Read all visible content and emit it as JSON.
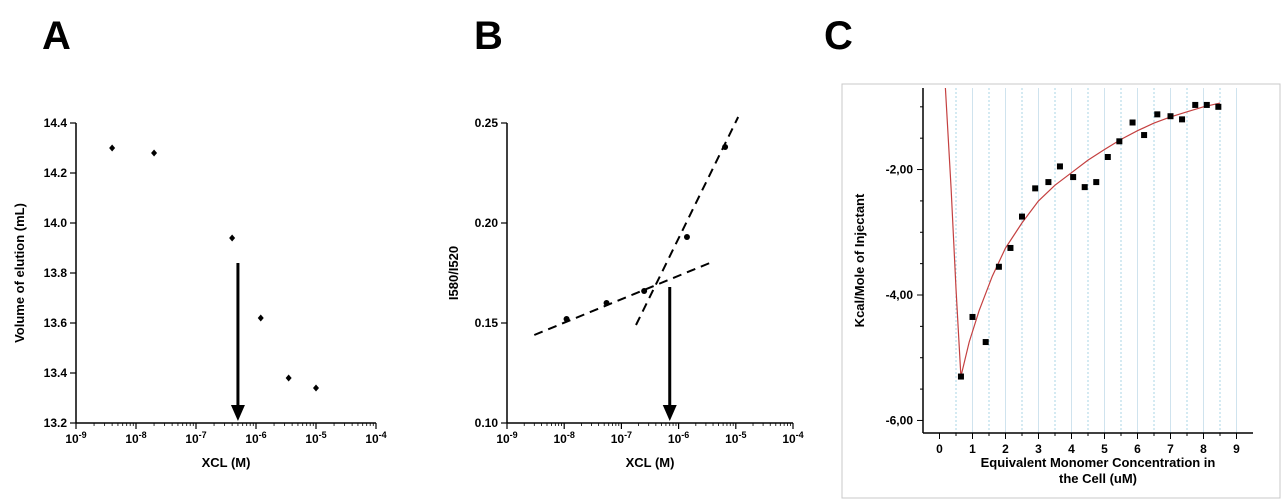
{
  "panels": {
    "a": "A",
    "b": "B",
    "c": "C"
  },
  "chart_data": [
    {
      "type": "scatter",
      "xscale": "log",
      "xlabel": "XCL (M)",
      "ylabel": "Volume of elution (mL)",
      "xlim": [
        1e-09,
        0.0001
      ],
      "ylim": [
        13.2,
        14.4
      ],
      "x_ticks": [
        -9,
        -8,
        -7,
        -6,
        -5,
        -4
      ],
      "y_ticks": [
        "13.2",
        "13.4",
        "13.6",
        "13.8",
        "14.0",
        "14.2",
        "14.4"
      ],
      "points": [
        {
          "x": 4e-09,
          "y": 14.3
        },
        {
          "x": 2e-08,
          "y": 14.28
        },
        {
          "x": 4e-07,
          "y": 13.94
        },
        {
          "x": 1.2e-06,
          "y": 13.62
        },
        {
          "x": 3.5e-06,
          "y": 13.38
        },
        {
          "x": 1e-05,
          "y": 13.34
        }
      ],
      "arrow": {
        "x": 5e-07,
        "y_from": 13.84,
        "y_to": 13.2
      }
    },
    {
      "type": "scatter",
      "xscale": "log",
      "xlabel": "XCL (M)",
      "ylabel": "I580/I520",
      "xlim": [
        1e-09,
        0.0001
      ],
      "ylim": [
        0.1,
        0.25
      ],
      "x_ticks": [
        -9,
        -8,
        -7,
        -6,
        -5,
        -4
      ],
      "y_ticks": [
        "0.10",
        "0.15",
        "0.20",
        "0.25"
      ],
      "points": [
        {
          "x": 1.1e-08,
          "y": 0.152
        },
        {
          "x": 5.5e-08,
          "y": 0.16
        },
        {
          "x": 2.5e-07,
          "y": 0.166
        },
        {
          "x": 1.4e-06,
          "y": 0.193
        },
        {
          "x": 6.5e-06,
          "y": 0.238
        }
      ],
      "fit_lines": [
        {
          "x1": 3e-09,
          "y1": 0.144,
          "x2": 3.5e-06,
          "y2": 0.18
        },
        {
          "x1": 1.8e-07,
          "y1": 0.149,
          "x2": 1.1e-05,
          "y2": 0.253
        }
      ],
      "arrow": {
        "x": 7e-07,
        "y_from": 0.168,
        "y_to": 0.1
      }
    },
    {
      "type": "scatter",
      "xlabel": "Equivalent Monomer Concentration in the Cell (uM)",
      "xlabel_lines": [
        "Equivalent Monomer Concentration in",
        "the Cell (uM)"
      ],
      "ylabel": "Kcal/Mole of Injectant",
      "xlim": [
        -0.5,
        9.5
      ],
      "ylim": [
        -6.2,
        -0.7
      ],
      "x_ticks": [
        "0",
        "1",
        "2",
        "3",
        "4",
        "5",
        "6",
        "7",
        "8",
        "9"
      ],
      "y_ticks": [
        {
          "v": -2,
          "label": "-2,00"
        },
        {
          "v": -4,
          "label": "-4,00"
        },
        {
          "v": -6,
          "label": "-6,00"
        }
      ],
      "points": [
        {
          "x": 0.65,
          "y": -5.3
        },
        {
          "x": 1.0,
          "y": -4.35
        },
        {
          "x": 1.4,
          "y": -4.75
        },
        {
          "x": 1.8,
          "y": -3.55
        },
        {
          "x": 2.15,
          "y": -3.25
        },
        {
          "x": 2.5,
          "y": -2.75
        },
        {
          "x": 2.9,
          "y": -2.3
        },
        {
          "x": 3.3,
          "y": -2.2
        },
        {
          "x": 3.65,
          "y": -1.95
        },
        {
          "x": 4.05,
          "y": -2.12
        },
        {
          "x": 4.4,
          "y": -2.28
        },
        {
          "x": 4.75,
          "y": -2.2
        },
        {
          "x": 5.1,
          "y": -1.8
        },
        {
          "x": 5.45,
          "y": -1.55
        },
        {
          "x": 5.85,
          "y": -1.25
        },
        {
          "x": 6.2,
          "y": -1.45
        },
        {
          "x": 6.6,
          "y": -1.12
        },
        {
          "x": 7.0,
          "y": -1.15
        },
        {
          "x": 7.35,
          "y": -1.2
        },
        {
          "x": 7.75,
          "y": -0.97
        },
        {
          "x": 8.1,
          "y": -0.97
        },
        {
          "x": 8.45,
          "y": -1.0
        }
      ],
      "fit_curve": [
        {
          "x": 0.18,
          "y": -0.7
        },
        {
          "x": 0.35,
          "y": -2.3
        },
        {
          "x": 0.5,
          "y": -3.9
        },
        {
          "x": 0.65,
          "y": -5.3
        },
        {
          "x": 0.9,
          "y": -4.75
        },
        {
          "x": 1.2,
          "y": -4.25
        },
        {
          "x": 1.6,
          "y": -3.7
        },
        {
          "x": 2.0,
          "y": -3.25
        },
        {
          "x": 2.5,
          "y": -2.85
        },
        {
          "x": 3.0,
          "y": -2.5
        },
        {
          "x": 3.5,
          "y": -2.25
        },
        {
          "x": 4.0,
          "y": -2.05
        },
        {
          "x": 4.5,
          "y": -1.85
        },
        {
          "x": 5.0,
          "y": -1.68
        },
        {
          "x": 5.5,
          "y": -1.52
        },
        {
          "x": 6.0,
          "y": -1.38
        },
        {
          "x": 6.5,
          "y": -1.26
        },
        {
          "x": 7.0,
          "y": -1.16
        },
        {
          "x": 7.5,
          "y": -1.08
        },
        {
          "x": 8.0,
          "y": -1.0
        },
        {
          "x": 8.5,
          "y": -0.94
        }
      ]
    }
  ]
}
